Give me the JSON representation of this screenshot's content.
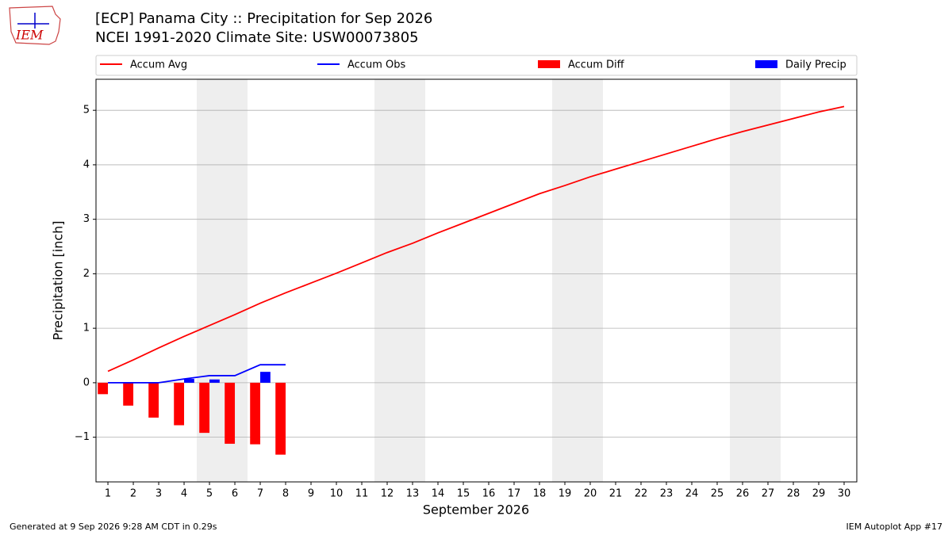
{
  "chart_data": {
    "type": "line",
    "title": "[ECP] Panama City :: Precipitation for Sep 2026",
    "subtitle": "NCEI 1991-2020 Climate Site: USW00073805",
    "logo_text": "IEM",
    "xlabel": "September 2026",
    "ylabel": "Precipitation [inch]",
    "footer_left": "Generated at 9 Sep 2026 9:28 AM CDT in 0.29s",
    "footer_right": "IEM Autoplot App #17",
    "x": [
      1,
      2,
      3,
      4,
      5,
      6,
      7,
      8,
      9,
      10,
      11,
      12,
      13,
      14,
      15,
      16,
      17,
      18,
      19,
      20,
      21,
      22,
      23,
      24,
      25,
      26,
      27,
      28,
      29,
      30
    ],
    "series": [
      {
        "name": "Accum Avg",
        "kind": "line",
        "color": "#ff0000",
        "values": [
          0.21,
          0.42,
          0.64,
          0.85,
          1.05,
          1.25,
          1.46,
          1.65,
          1.83,
          2.01,
          2.2,
          2.39,
          2.56,
          2.75,
          2.93,
          3.11,
          3.29,
          3.47,
          3.62,
          3.78,
          3.92,
          4.06,
          4.2,
          4.34,
          4.48,
          4.61,
          4.73,
          4.85,
          4.97,
          5.07
        ]
      },
      {
        "name": "Accum Obs",
        "kind": "line",
        "color": "#0000ff",
        "values": [
          0,
          0,
          0,
          0.07,
          0.13,
          0.13,
          0.33,
          0.33,
          null,
          null,
          null,
          null,
          null,
          null,
          null,
          null,
          null,
          null,
          null,
          null,
          null,
          null,
          null,
          null,
          null,
          null,
          null,
          null,
          null,
          null
        ]
      },
      {
        "name": "Accum Diff",
        "kind": "bar",
        "offset": -0.2,
        "color": "#ff0000",
        "values": [
          -0.21,
          -0.42,
          -0.64,
          -0.78,
          -0.92,
          -1.12,
          -1.13,
          -1.32,
          null,
          null,
          null,
          null,
          null,
          null,
          null,
          null,
          null,
          null,
          null,
          null,
          null,
          null,
          null,
          null,
          null,
          null,
          null,
          null,
          null,
          null
        ]
      },
      {
        "name": "Daily Precip",
        "kind": "bar",
        "offset": 0.2,
        "color": "#0000ff",
        "values": [
          0,
          0,
          0,
          0.07,
          0.06,
          0,
          0.2,
          0,
          null,
          null,
          null,
          null,
          null,
          null,
          null,
          null,
          null,
          null,
          null,
          null,
          null,
          null,
          null,
          null,
          null,
          null,
          null,
          null,
          null,
          null
        ]
      }
    ],
    "weekend_spans": [
      [
        4.5,
        6.5
      ],
      [
        11.5,
        13.5
      ],
      [
        18.5,
        20.5
      ],
      [
        25.5,
        27.5
      ]
    ],
    "xlim": [
      0.53,
      30.5
    ],
    "xticks": [
      1,
      2,
      3,
      4,
      5,
      6,
      7,
      8,
      9,
      10,
      11,
      12,
      13,
      14,
      15,
      16,
      17,
      18,
      19,
      20,
      21,
      22,
      23,
      24,
      25,
      26,
      27,
      28,
      29,
      30
    ],
    "ylim": [
      -1.82,
      5.57
    ],
    "yticks": [
      {
        "value": -1,
        "label": "−1"
      },
      0,
      1,
      2,
      3,
      4,
      5
    ],
    "grid": true,
    "legend": "upper center"
  }
}
